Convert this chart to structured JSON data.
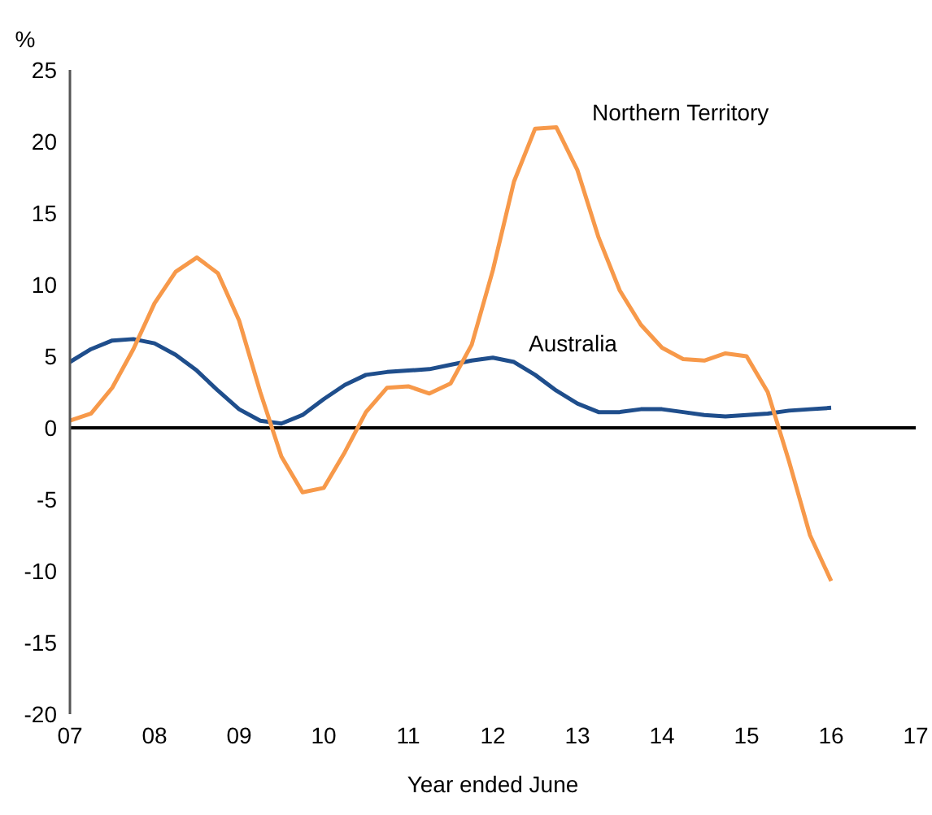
{
  "chart_data": {
    "type": "line",
    "ylabel": "%",
    "xlabel": "Year ended June",
    "x": [
      7,
      7.25,
      7.5,
      7.75,
      8,
      8.25,
      8.5,
      8.75,
      9,
      9.25,
      9.5,
      9.75,
      10,
      10.25,
      10.5,
      10.75,
      11,
      11.25,
      11.5,
      11.75,
      12,
      12.25,
      12.5,
      12.75,
      13,
      13.25,
      13.5,
      13.75,
      14,
      14.25,
      14.5,
      14.75,
      15,
      15.25,
      15.5,
      15.75,
      16
    ],
    "series": [
      {
        "name": "Australia",
        "color": "#1f4e8c",
        "values": [
          4.6,
          5.5,
          6.1,
          6.2,
          5.9,
          5.1,
          4.0,
          2.6,
          1.3,
          0.5,
          0.3,
          0.9,
          2.0,
          3.0,
          3.7,
          3.9,
          4.0,
          4.1,
          4.4,
          4.7,
          4.9,
          4.6,
          3.7,
          2.6,
          1.7,
          1.1,
          1.1,
          1.3,
          1.3,
          1.1,
          0.9,
          0.8,
          0.9,
          1.0,
          1.2,
          1.3,
          1.4
        ]
      },
      {
        "name": "Northern Territory",
        "color": "#f7994a",
        "values": [
          0.5,
          1.0,
          2.8,
          5.5,
          8.7,
          10.9,
          11.9,
          10.8,
          7.5,
          2.5,
          -2.0,
          -4.5,
          -4.2,
          -1.7,
          1.1,
          2.8,
          2.9,
          2.4,
          3.1,
          5.8,
          11.0,
          17.2,
          20.9,
          21.0,
          18.0,
          13.3,
          9.6,
          7.2,
          5.6,
          4.8,
          4.7,
          5.2,
          5.0,
          2.5,
          -2.3,
          -7.5,
          -10.7
        ]
      }
    ],
    "xlim": [
      7,
      17
    ],
    "xticks": [
      {
        "value": 7,
        "label": "07"
      },
      {
        "value": 8,
        "label": "08"
      },
      {
        "value": 9,
        "label": "09"
      },
      {
        "value": 10,
        "label": "10"
      },
      {
        "value": 11,
        "label": "11"
      },
      {
        "value": 12,
        "label": "12"
      },
      {
        "value": 13,
        "label": "13"
      },
      {
        "value": 14,
        "label": "14"
      },
      {
        "value": 15,
        "label": "15"
      },
      {
        "value": 16,
        "label": "16"
      },
      {
        "value": 17,
        "label": "17"
      }
    ],
    "ylim": [
      -20,
      25
    ],
    "yticks": [
      -20,
      -15,
      -10,
      -5,
      0,
      5,
      10,
      15,
      20,
      25
    ],
    "ref_lines": [
      {
        "axis": "y",
        "value": 0,
        "color": "#000000"
      }
    ],
    "grid": false,
    "legend": false,
    "marker": "none",
    "line_style": "solid"
  }
}
